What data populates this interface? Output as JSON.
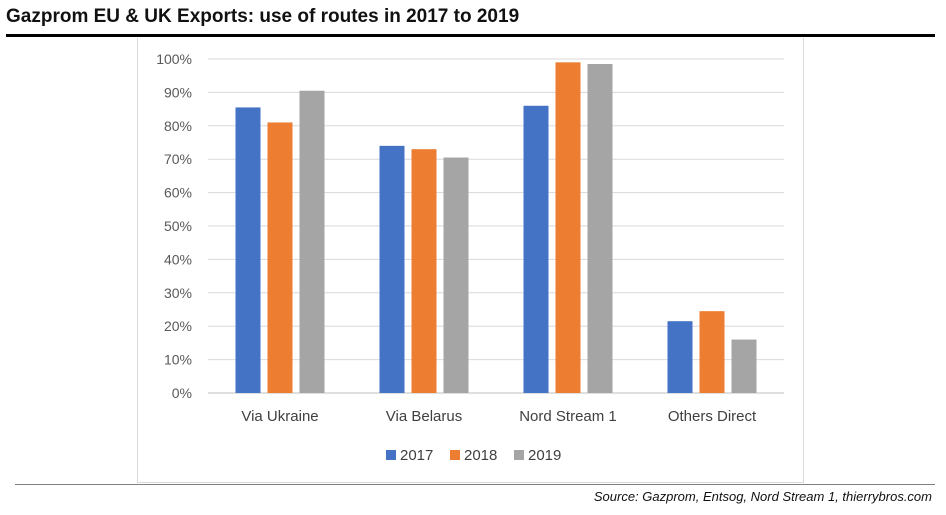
{
  "header": {
    "title": "Gazprom EU & UK Exports: use of routes in 2017 to 2019"
  },
  "footer": {
    "source": "Source: Gazprom, Entsog, Nord Stream 1, thierrybros.com"
  },
  "chart_data": {
    "type": "bar",
    "title": "Gazprom EU & UK Exports: use of routes in 2017 to 2019",
    "xlabel": "",
    "ylabel": "",
    "categories": [
      "Via Ukraine",
      "Via Belarus",
      "Nord Stream 1",
      "Others Direct"
    ],
    "series": [
      {
        "name": "2017",
        "color": "#4472c4",
        "values": [
          85.5,
          74,
          86,
          21.5
        ]
      },
      {
        "name": "2018",
        "color": "#ed7d31",
        "values": [
          81,
          73,
          99,
          24.5
        ]
      },
      {
        "name": "2019",
        "color": "#a5a5a5",
        "values": [
          90.5,
          70.5,
          98.5,
          16
        ]
      }
    ],
    "ylim": [
      0,
      100
    ],
    "yticks": [
      0,
      10,
      20,
      30,
      40,
      50,
      60,
      70,
      80,
      90,
      100
    ],
    "ytick_labels": [
      "0%",
      "10%",
      "20%",
      "30%",
      "40%",
      "50%",
      "60%",
      "70%",
      "80%",
      "90%",
      "100%"
    ],
    "grid": true,
    "legend_position": "bottom"
  }
}
